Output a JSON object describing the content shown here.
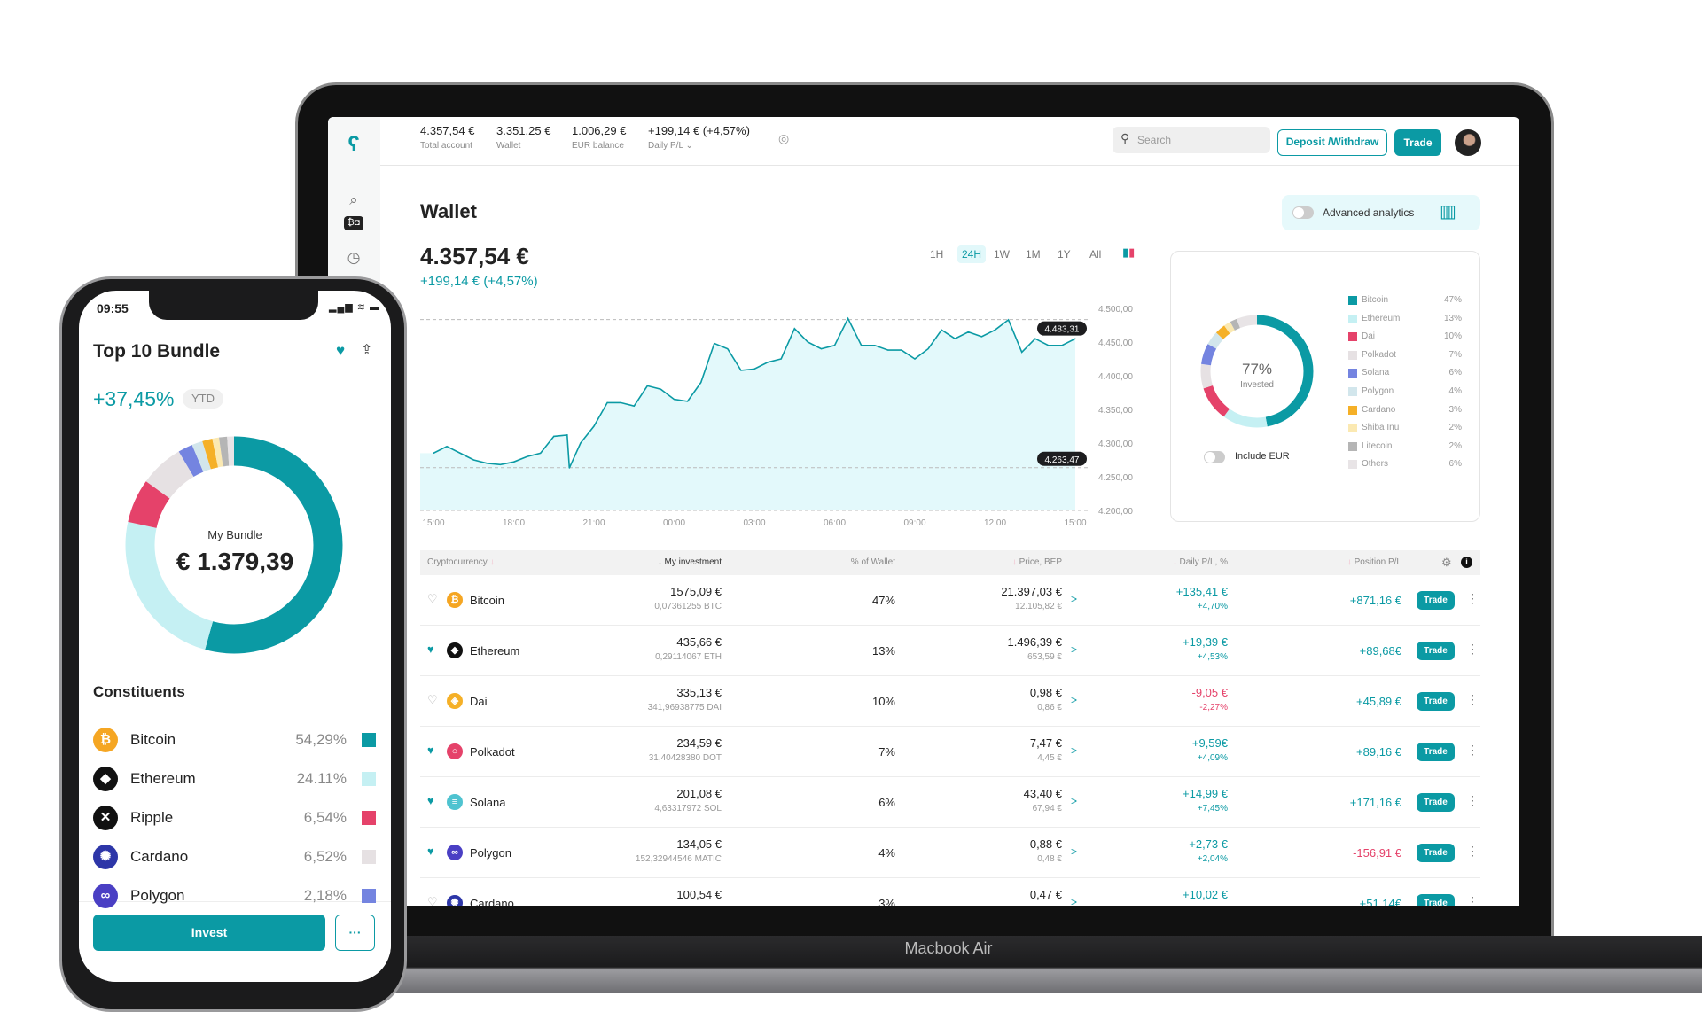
{
  "device_label": "Macbook Air",
  "header": {
    "stats": [
      {
        "value": "4.357,54 €",
        "label": "Total account"
      },
      {
        "value": "3.351,25 €",
        "label": "Wallet"
      },
      {
        "value": "1.006,29 €",
        "label": "EUR balance"
      },
      {
        "value": "+199,14 € (+4,57%)",
        "label": "Daily P/L"
      }
    ],
    "search_placeholder": "Search",
    "deposit_label": "Deposit /Withdraw",
    "trade_label": "Trade"
  },
  "wallet": {
    "title": "Wallet",
    "total": "4.357,54 €",
    "change": "+199,14 € (+4,57%)",
    "timeframes": [
      "1H",
      "24H",
      "1W",
      "1M",
      "1Y",
      "All"
    ],
    "active_timeframe": "24H",
    "advanced_analytics_label": "Advanced analytics",
    "advanced_analytics_on": false
  },
  "chart_data": [
    {
      "type": "area",
      "x": [
        "15:00",
        "15:30",
        "16:00",
        "16:30",
        "17:00",
        "17:30",
        "18:00",
        "18:30",
        "19:00",
        "19:30",
        "20:00",
        "20:05",
        "20:30",
        "21:00",
        "21:30",
        "22:00",
        "22:30",
        "23:00",
        "23:30",
        "00:00",
        "00:30",
        "01:00",
        "01:30",
        "02:00",
        "02:30",
        "03:00",
        "03:30",
        "04:00",
        "04:30",
        "05:00",
        "05:30",
        "06:00",
        "06:30",
        "07:00",
        "07:30",
        "08:00",
        "08:30",
        "09:00",
        "09:30",
        "10:00",
        "10:30",
        "11:00",
        "11:30",
        "12:00",
        "12:30",
        "13:00",
        "13:30",
        "14:00",
        "14:30",
        "15:00"
      ],
      "values": [
        4285,
        4295,
        4285,
        4275,
        4270,
        4268,
        4272,
        4280,
        4285,
        4310,
        4312,
        4263,
        4300,
        4325,
        4360,
        4360,
        4355,
        4385,
        4380,
        4365,
        4362,
        4390,
        4448,
        4440,
        4408,
        4410,
        4420,
        4425,
        4470,
        4450,
        4440,
        4445,
        4485,
        4445,
        4445,
        4438,
        4438,
        4425,
        4440,
        4468,
        4455,
        4465,
        4458,
        4468,
        4483,
        4435,
        4455,
        4445,
        4445,
        4455
      ],
      "x_ticks": [
        "15:00",
        "18:00",
        "21:00",
        "00:00",
        "03:00",
        "06:00",
        "09:00",
        "12:00",
        "15:00"
      ],
      "y_ticks": [
        "4.500,00",
        "4.450,00",
        "4.400,00",
        "4.350,00",
        "4.300,00",
        "4.250,00",
        "4.200,00"
      ],
      "ylim": [
        4200,
        4500
      ],
      "high_label": "4.483,31",
      "high": 4483.31,
      "low_label": "4.263,47",
      "low": 4263.47,
      "color": "#0b9aa4",
      "fill": "#e3f9fb"
    },
    {
      "type": "pie",
      "center_value": "77%",
      "center_label": "Invested",
      "categories": [
        "Bitcoin",
        "Ethereum",
        "Dai",
        "Polkadot",
        "Solana",
        "Polygon",
        "Cardano",
        "Shiba Inu",
        "Litecoin",
        "Others"
      ],
      "values": [
        47,
        13,
        10,
        7,
        6,
        4,
        3,
        2,
        2,
        6
      ],
      "labels": [
        "47%",
        "13%",
        "10%",
        "7%",
        "6%",
        "4%",
        "3%",
        "2%",
        "2%",
        "6%"
      ],
      "colors": [
        "#0b9aa4",
        "#c5f0f3",
        "#e5426a",
        "#e6e1e3",
        "#7484e0",
        "#d2e6ec",
        "#f5b027",
        "#fbe9b2",
        "#b5b5b5",
        "#e8e4e6"
      ],
      "include_eur_label": "Include EUR"
    },
    {
      "type": "pie",
      "center_label": "My Bundle",
      "center_value": "€ 1.379,39",
      "values": [
        54.29,
        24.11,
        6.54,
        6.52,
        2.18,
        1.6,
        1.5,
        1.0,
        1.2,
        1.06
      ],
      "colors": [
        "#0b9aa4",
        "#c5f0f3",
        "#e5426a",
        "#e6e1e3",
        "#7484e0",
        "#d2e6ec",
        "#f5b027",
        "#fbe9b2",
        "#b5b5b5",
        "#e8e4e6"
      ]
    }
  ],
  "table": {
    "headers": {
      "crypto": "Cryptocurrency",
      "investment": "↓ My investment",
      "wallet_pct": "% of Wallet",
      "price": "Price, BEP",
      "daily": "Daily P/L, %",
      "position": "Position P/L"
    },
    "trade_label": "Trade",
    "rows": [
      {
        "fav": false,
        "name": "Bitcoin",
        "icon": "bitcoin-icon",
        "color": "#f5a623",
        "glyph": "₿",
        "investment": "1575,09 €",
        "amount": "0,07361255 BTC",
        "pct": "47%",
        "price": "21.397,03 €",
        "bep": "12.105,82 €",
        "daily": "+135,41 €",
        "daily_pct": "+4,70%",
        "daily_neg": false,
        "position": "+871,16 €",
        "position_neg": false
      },
      {
        "fav": true,
        "name": "Ethereum",
        "icon": "ethereum-icon",
        "color": "#111",
        "glyph": "◆",
        "investment": "435,66 €",
        "amount": "0,29114067 ETH",
        "pct": "13%",
        "price": "1.496,39 €",
        "bep": "653,59 €",
        "daily": "+19,39 €",
        "daily_pct": "+4,53%",
        "daily_neg": false,
        "position": "+89,68€",
        "position_neg": false
      },
      {
        "fav": false,
        "name": "Dai",
        "icon": "dai-icon",
        "color": "#f5b027",
        "glyph": "◈",
        "investment": "335,13 €",
        "amount": "341,96938775 DAI",
        "pct": "10%",
        "price": "0,98 €",
        "bep": "0,86 €",
        "daily": "-9,05 €",
        "daily_pct": "-2,27%",
        "daily_neg": true,
        "position": "+45,89 €",
        "position_neg": false
      },
      {
        "fav": true,
        "name": "Polkadot",
        "icon": "polkadot-icon",
        "color": "#e5426a",
        "glyph": "○",
        "investment": "234,59 €",
        "amount": "31,40428380 DOT",
        "pct": "7%",
        "price": "7,47 €",
        "bep": "4,45 €",
        "daily": "+9,59€",
        "daily_pct": "+4,09%",
        "daily_neg": false,
        "position": "+89,16 €",
        "position_neg": false
      },
      {
        "fav": true,
        "name": "Solana",
        "icon": "solana-icon",
        "color": "#4fc3d0",
        "glyph": "≡",
        "investment": "201,08 €",
        "amount": "4,63317972 SOL",
        "pct": "6%",
        "price": "43,40 €",
        "bep": "67,94 €",
        "daily": "+14,99 €",
        "daily_pct": "+7,45%",
        "daily_neg": false,
        "position": "+171,16 €",
        "position_neg": false
      },
      {
        "fav": true,
        "name": "Polygon",
        "icon": "polygon-icon",
        "color": "#4a3fc4",
        "glyph": "∞",
        "investment": "134,05 €",
        "amount": "152,32944546 MATIC",
        "pct": "4%",
        "price": "0,88 €",
        "bep": "0,48 €",
        "daily": "+2,73 €",
        "daily_pct": "+2,04%",
        "daily_neg": false,
        "position": "-156,91 €",
        "position_neg": true
      },
      {
        "fav": false,
        "name": "Cardano",
        "icon": "cardano-icon",
        "color": "#2d36a8",
        "glyph": "✺",
        "investment": "100,54 €",
        "amount": "",
        "pct": "3%",
        "price": "0,47 €",
        "bep": "",
        "daily": "+10,02 €",
        "daily_pct": "",
        "daily_neg": false,
        "position": "+51,14€",
        "position_neg": false
      }
    ]
  },
  "phone": {
    "time": "09:55",
    "title": "Top 10 Bundle",
    "ytd_change": "+37,45%",
    "ytd_label": "YTD",
    "constituents_title": "Constituents",
    "constituents": [
      {
        "name": "Bitcoin",
        "pct": "54,29%",
        "icon": "bitcoin-icon",
        "color": "#f5a623",
        "glyph": "₿",
        "swatch": "#0b9aa4"
      },
      {
        "name": "Ethereum",
        "pct": "24.11%",
        "icon": "ethereum-icon",
        "color": "#111",
        "glyph": "◆",
        "swatch": "#c5f0f3"
      },
      {
        "name": "Ripple",
        "pct": "6,54%",
        "icon": "ripple-icon",
        "color": "#111",
        "glyph": "✕",
        "swatch": "#e5426a"
      },
      {
        "name": "Cardano",
        "pct": "6,52%",
        "icon": "cardano-icon",
        "color": "#2d36a8",
        "glyph": "✺",
        "swatch": "#e6e1e3"
      },
      {
        "name": "Polygon",
        "pct": "2,18%",
        "icon": "polygon-icon",
        "color": "#4a3fc4",
        "glyph": "∞",
        "swatch": "#7484e0"
      }
    ],
    "invest_label": "Invest",
    "more_label": "···"
  }
}
